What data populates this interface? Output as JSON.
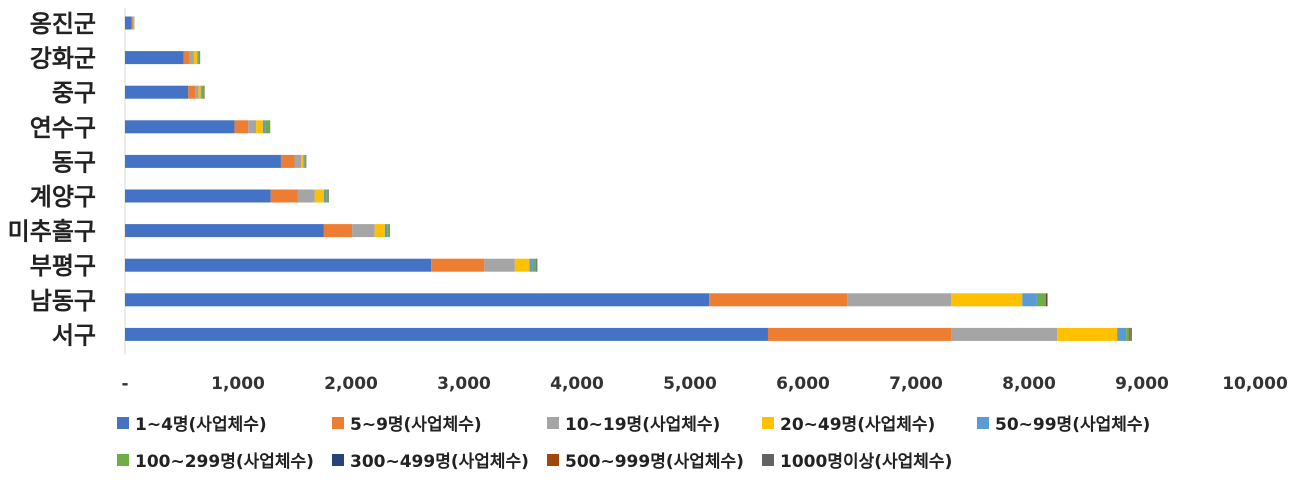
{
  "chart_data": {
    "type": "bar",
    "orientation": "horizontal",
    "stacked": true,
    "categories": [
      "옹진군",
      "강화군",
      "중구",
      "연수구",
      "동구",
      "계양구",
      "미추홀구",
      "부평구",
      "남동구",
      "서구"
    ],
    "series": [
      {
        "name": "1~4명(사업체수)",
        "color": "#4472C4",
        "values": [
          60,
          520,
          560,
          970,
          1380,
          1290,
          1760,
          2710,
          5170,
          5690
        ]
      },
      {
        "name": "5~9명(사업체수)",
        "color": "#ED7D31",
        "values": [
          10,
          50,
          60,
          120,
          120,
          240,
          250,
          470,
          1220,
          1620
        ]
      },
      {
        "name": "10~19명(사업체수)",
        "color": "#A5A5A5",
        "values": [
          5,
          40,
          30,
          70,
          60,
          150,
          200,
          270,
          920,
          940
        ]
      },
      {
        "name": "20~49명(사업체수)",
        "color": "#FFC000",
        "values": [
          5,
          30,
          20,
          60,
          20,
          80,
          90,
          130,
          630,
          530
        ]
      },
      {
        "name": "50~99명(사업체수)",
        "color": "#5B9BD5",
        "values": [
          2,
          10,
          10,
          20,
          10,
          20,
          20,
          30,
          130,
          80
        ]
      },
      {
        "name": "100~299명(사업체수)",
        "color": "#70AD47",
        "values": [
          2,
          10,
          20,
          40,
          10,
          20,
          20,
          30,
          80,
          30
        ]
      },
      {
        "name": "300~499명(사업체수)",
        "color": "#264478",
        "values": [
          0,
          2,
          2,
          2,
          2,
          2,
          2,
          5,
          5,
          5
        ]
      },
      {
        "name": "500~999명(사업체수)",
        "color": "#9E480E",
        "values": [
          0,
          2,
          2,
          2,
          2,
          2,
          2,
          3,
          5,
          5
        ]
      },
      {
        "name": "1000명이상(사업체수)",
        "color": "#636363",
        "values": [
          0,
          1,
          1,
          1,
          1,
          1,
          1,
          2,
          5,
          10
        ]
      }
    ],
    "x_ticks": [
      "-",
      "1,000",
      "2,000",
      "3,000",
      "4,000",
      "5,000",
      "6,000",
      "7,000",
      "8,000",
      "9,000",
      "10,000"
    ],
    "xlim": [
      0,
      10000
    ],
    "grid": false,
    "legend_position": "bottom"
  }
}
